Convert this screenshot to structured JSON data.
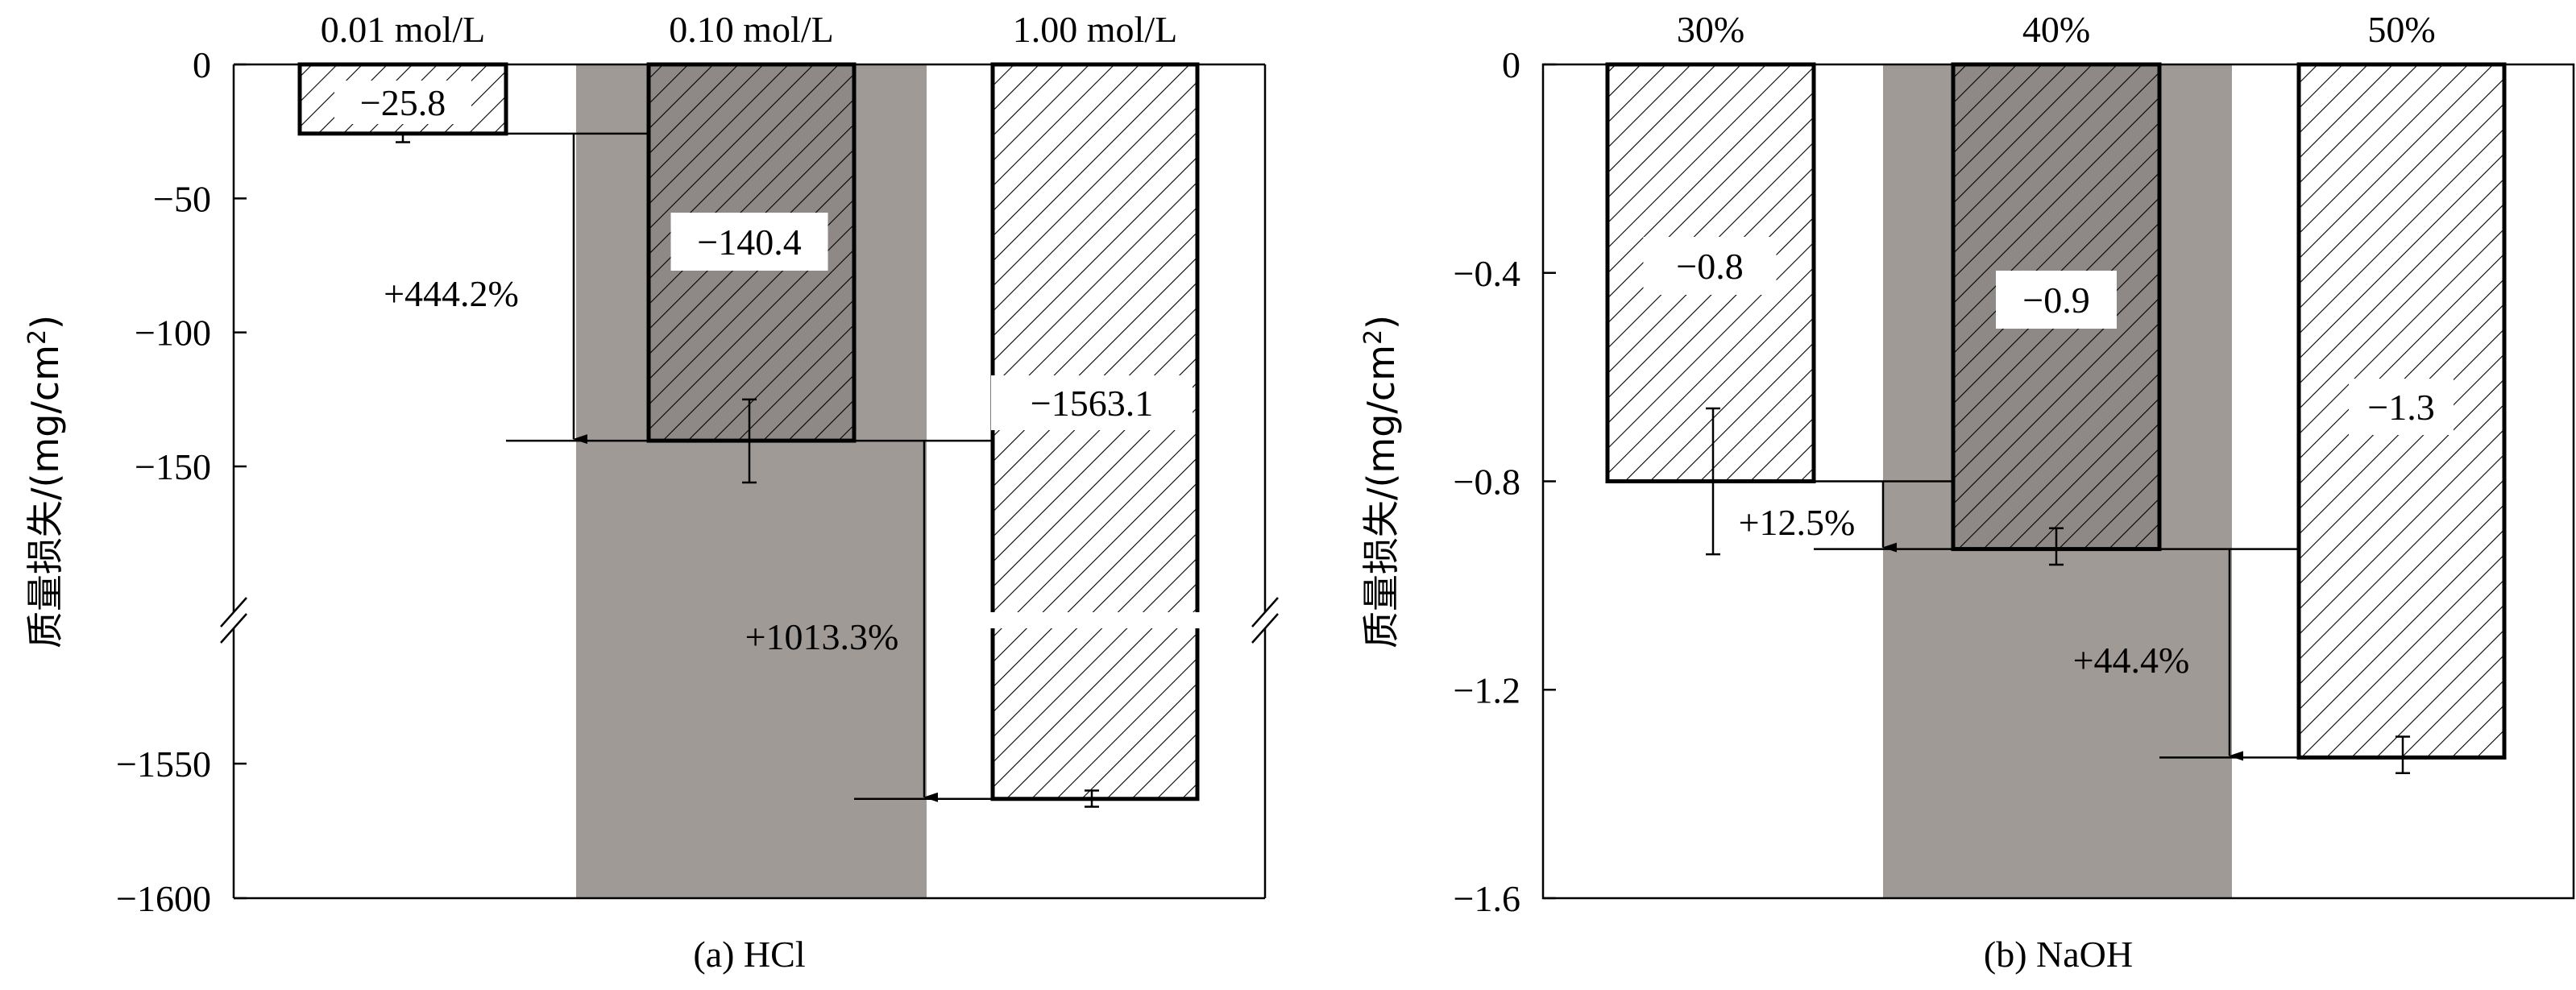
{
  "chart_data": [
    {
      "type": "bar",
      "panel_label": "(a) HCl",
      "ylabel": "质量损失/(mg/cm²)",
      "ylabel_parts": {
        "main": "质量损失/(mg/cm",
        "sup": "2",
        "close": ")"
      },
      "y_axis": "broken",
      "yticks_upper": [
        "0",
        "-50",
        "-100",
        "-150"
      ],
      "yticks_lower": [
        "-1550",
        "-1600"
      ],
      "categories": [
        "0.01 mol/L",
        "0.10 mol/L",
        "1.00 mol/L"
      ],
      "values": [
        -25.8,
        -140.4,
        -1563.1
      ],
      "value_labels": [
        "−25.8",
        "−140.4",
        "−1563.1"
      ],
      "error_bars": [
        {
          "low": -29,
          "high": -26
        },
        {
          "low": -156,
          "high": -125
        },
        {
          "low": -1566,
          "high": -1560
        }
      ],
      "highlight_category": "0.10 mol/L",
      "annotations": [
        "+444.2%",
        "+1013.3%"
      ]
    },
    {
      "type": "bar",
      "panel_label": "(b) NaOH",
      "ylabel": "质量损失/(mg/cm²)",
      "ylabel_parts": {
        "main": "质量损失/(mg/cm",
        "sup": "2",
        "close": ")"
      },
      "ylim": [
        -1.6,
        0
      ],
      "yticks": [
        "0",
        "-0.4",
        "-0.8",
        "-1.2",
        "-1.6"
      ],
      "categories": [
        "30%",
        "40%",
        "50%"
      ],
      "values": [
        -0.8,
        -0.93,
        -1.33
      ],
      "value_labels": [
        "−0.8",
        "−0.9",
        "−1.3"
      ],
      "error_bars": [
        {
          "low": -0.94,
          "high": -0.66
        },
        {
          "low": -0.96,
          "high": -0.89
        },
        {
          "low": -1.36,
          "high": -1.29
        }
      ],
      "highlight_category": "40%",
      "annotations": [
        "+12.5%",
        "+44.4%"
      ]
    }
  ],
  "colors": {
    "highlight_band": "#a09a97",
    "bar_fill_light": "#ffffff",
    "bar_fill_dark": "#8e8986",
    "stroke": "#000000"
  }
}
